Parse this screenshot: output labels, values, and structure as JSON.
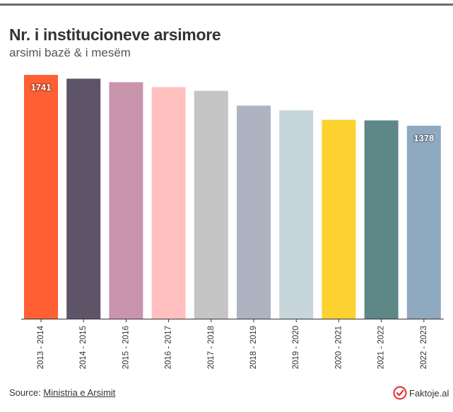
{
  "header": {
    "title": "Nr. i institucioneve arsimore",
    "subtitle": "arsimi bazë & i mesëm"
  },
  "footer": {
    "source_prefix": "Source: ",
    "source_link": "Ministria e Arsimit",
    "brand": "Faktoje.al"
  },
  "colors": {
    "brand_red": "#e63b3b"
  },
  "icons": {
    "brand": "check-circle-icon"
  },
  "chart_data": {
    "type": "bar",
    "title": "Nr. i institucioneve arsimore",
    "subtitle": "arsimi bazë & i mesëm",
    "xlabel": "",
    "ylabel": "",
    "categories": [
      "2013 - 2014",
      "2014 - 2015",
      "2015 - 2016",
      "2016 - 2017",
      "2017 - 2018",
      "2018 - 2019",
      "2019 - 2020",
      "2020 - 2021",
      "2021 - 2022",
      "2022 - 2023"
    ],
    "values": [
      1741,
      1714,
      1689,
      1654,
      1627,
      1522,
      1488,
      1420,
      1416,
      1378
    ],
    "colors": [
      "#ff5f32",
      "#5e5468",
      "#c995ac",
      "#ffc0bf",
      "#c5c5c5",
      "#adb3c1",
      "#c6d6da",
      "#fdd130",
      "#5e8888",
      "#8fa9c0"
    ],
    "data_labels": [
      {
        "index": 0,
        "text": "1741"
      },
      {
        "index": 9,
        "text": "1378"
      }
    ],
    "ylim": [
      0,
      1741
    ],
    "grid": false,
    "legend": "none"
  }
}
